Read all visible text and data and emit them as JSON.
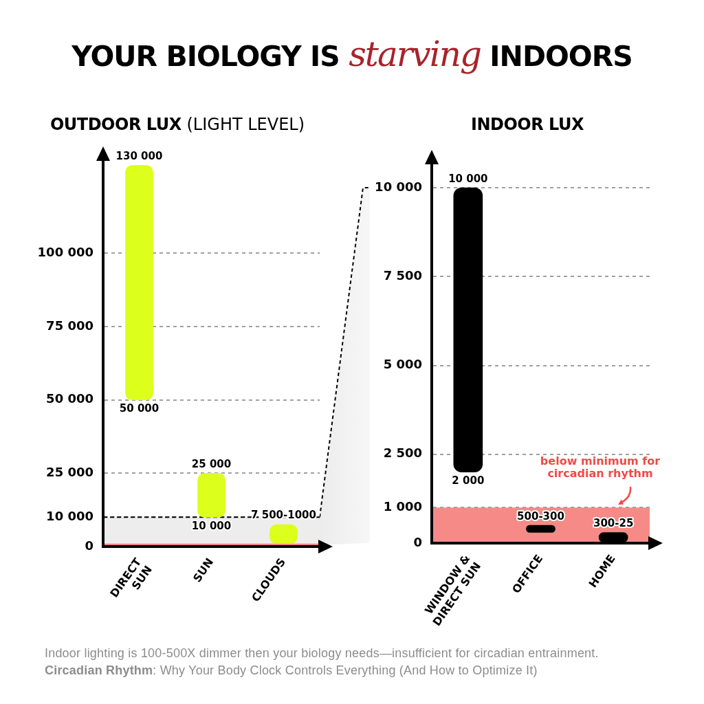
{
  "chart_data": [
    {
      "type": "other",
      "title": "YOUR BIOLOGY IS starving INDOORS"
    },
    {
      "type": "bar",
      "title": "OUTDOOR LUX (LIGHT LEVEL)",
      "categories": [
        "DIRECT SUN",
        "SUN",
        "CLOUDS"
      ],
      "base": [
        50000,
        10000,
        1000
      ],
      "values": [
        80000,
        15000,
        6500
      ],
      "color": "#dcff1c",
      "ylim": [
        0,
        132000
      ],
      "yticks": [
        0,
        {
          "value": 10000,
          "label": "10 000"
        },
        {
          "value": 25000,
          "label": "25 000"
        },
        {
          "value": 50000,
          "label": "50 000"
        },
        {
          "value": 75000,
          "label": "75 000"
        },
        {
          "value": 100000,
          "label": "100 000"
        }
      ],
      "grid": "y",
      "bands": [
        {
          "axis": "y",
          "from": 0,
          "to": 10000,
          "color": "#e4e4e4"
        },
        {
          "axis": "y",
          "from": 0,
          "to": 1000,
          "color": "#ef4b45"
        }
      ],
      "ref_lines": [
        {
          "axis": "y",
          "value": 10000,
          "color": "#000000",
          "line_style": "dashed"
        }
      ],
      "annotations": [
        {
          "text": "130 000",
          "x": "DIRECT SUN",
          "y": 130000
        },
        {
          "text": "50 000",
          "x": "DIRECT SUN",
          "y": 50000
        },
        {
          "text": "25 000",
          "x": "SUN",
          "y": 25000
        },
        {
          "text": "10 000",
          "x": "SUN",
          "y": 10000
        },
        {
          "text": "7 500-1000",
          "x": "CLOUDS",
          "y": 7500
        }
      ]
    },
    {
      "type": "bar",
      "title": "INDOOR LUX",
      "categories": [
        "WINDOW & DIRECT SUN",
        "OFFICE",
        "HOME"
      ],
      "base": [
        2000,
        300,
        25
      ],
      "values": [
        8000,
        200,
        275
      ],
      "color": "#000000",
      "ylim": [
        0,
        10700
      ],
      "yticks": [
        0,
        {
          "value": 1000,
          "label": "1 000"
        },
        {
          "value": 2500,
          "label": "2 500"
        },
        {
          "value": 5000,
          "label": "5 000"
        },
        {
          "value": 7500,
          "label": "7 500"
        },
        {
          "value": 10000,
          "label": "10 000"
        }
      ],
      "grid": "y",
      "bands": [
        {
          "axis": "y",
          "from": 0,
          "to": 1000,
          "color": "#ef4b45",
          "label": "below minimum for circadian rhythm"
        }
      ],
      "annotations": [
        {
          "text": "10 000",
          "x": "WINDOW & DIRECT SUN",
          "y": 10000
        },
        {
          "text": "2 000",
          "x": "WINDOW & DIRECT SUN",
          "y": 2000
        },
        {
          "text": "500-300",
          "x": "OFFICE",
          "y": 500
        },
        {
          "text": "300-25",
          "x": "HOME",
          "y": 300
        }
      ]
    },
    {
      "type": "other",
      "annotations": [
        "Indoor lighting is 100-500X dimmer then your biology needs—insufficient for circadian entrainment.",
        "Circadian Rhythm: Why Your Body Clock Controls Everything (And How to Optimize It)"
      ]
    }
  ]
}
